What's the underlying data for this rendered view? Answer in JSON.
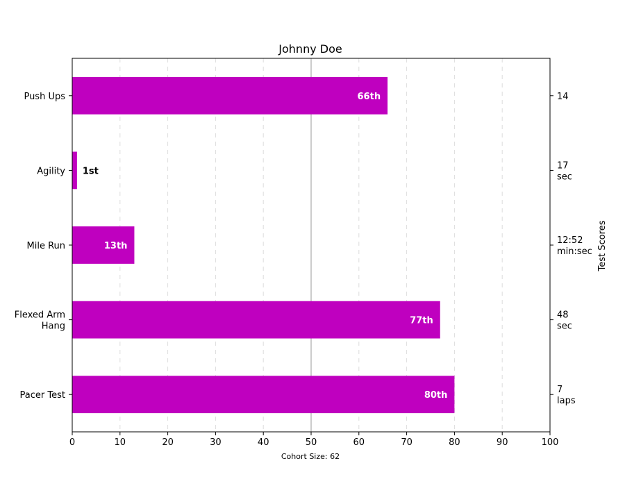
{
  "chart_data": {
    "type": "bar",
    "orientation": "horizontal",
    "title": "Johnny Doe",
    "xlabel": "Cohort Size: 62",
    "ylabel_right": "Test Scores",
    "xlim": [
      0,
      100
    ],
    "xticks": [
      0,
      10,
      20,
      30,
      40,
      50,
      60,
      70,
      80,
      90,
      100
    ],
    "grid": "x-dashed",
    "median_line": 50,
    "bar_color": "#bf00bf",
    "categories": [
      "Pacer Test",
      "Flexed Arm\n Hang",
      "Mile Run",
      "Agility",
      "Push Ups"
    ],
    "values": [
      80,
      77,
      13,
      1,
      66
    ],
    "bar_labels": [
      "80th",
      "77th",
      "13th",
      "1st",
      "66th"
    ],
    "bar_label_inside": [
      true,
      true,
      true,
      false,
      true
    ],
    "test_scores": [
      "7\nlaps",
      "48\nsec",
      "12:52\nmin:sec",
      "17\nsec",
      "14"
    ]
  }
}
